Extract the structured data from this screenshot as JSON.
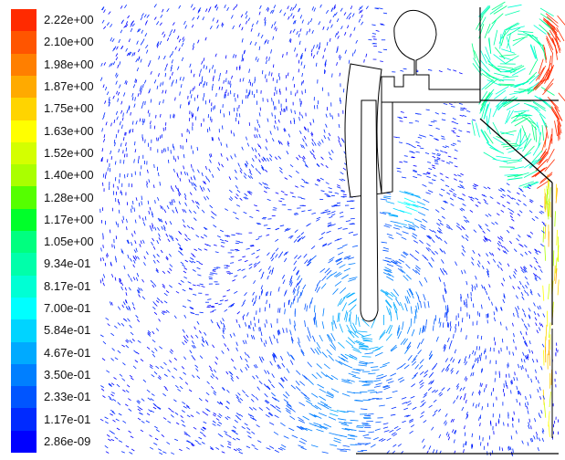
{
  "chart_data": {
    "type": "vector-field",
    "title": "",
    "colorbar": {
      "tick_labels": [
        "2.22e+00",
        "2.10e+00",
        "1.98e+00",
        "1.87e+00",
        "1.75e+00",
        "1.63e+00",
        "1.52e+00",
        "1.40e+00",
        "1.28e+00",
        "1.17e+00",
        "1.05e+00",
        "9.34e-01",
        "8.17e-01",
        "7.00e-01",
        "5.84e-01",
        "4.67e-01",
        "3.50e-01",
        "2.33e-01",
        "1.17e-01",
        "2.86e-09"
      ],
      "values": [
        2.22,
        2.1,
        1.98,
        1.87,
        1.75,
        1.63,
        1.52,
        1.4,
        1.28,
        1.17,
        1.05,
        0.934,
        0.817,
        0.7,
        0.584,
        0.467,
        0.35,
        0.233,
        0.117,
        2.86e-09
      ],
      "colors": [
        "#ff2a00",
        "#ff5500",
        "#ff7f00",
        "#ffaa00",
        "#ffd400",
        "#ffff00",
        "#d4ff00",
        "#aaff00",
        "#55ff00",
        "#00ff2a",
        "#00ff7f",
        "#00ffaa",
        "#00ffd4",
        "#00ffff",
        "#00d4ff",
        "#00aaff",
        "#007fff",
        "#0055ff",
        "#002aff",
        "#0000ff"
      ],
      "range": [
        2.86e-09,
        2.22
      ]
    }
  },
  "colors": {
    "background": "#ffffff",
    "geometry_outline": "#000000"
  }
}
